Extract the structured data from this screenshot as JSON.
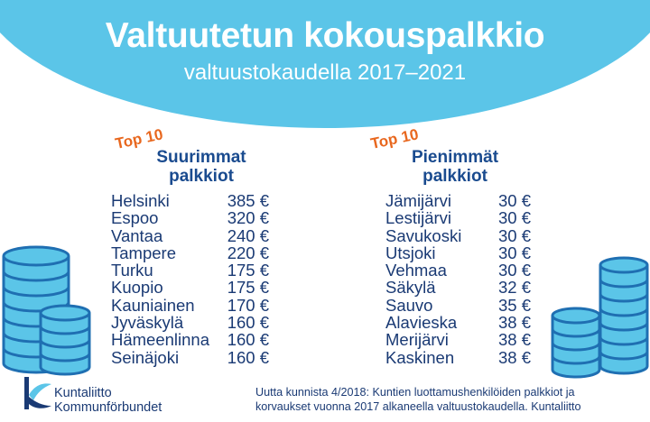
{
  "header": {
    "title": "Valtuutetun kokouspalkkio",
    "subtitle": "valtuustokaudella 2017–2021",
    "color": "#5bc5e8"
  },
  "left": {
    "badge": "Top 10",
    "title_line1": "Suurimmat",
    "title_line2": "palkkiot",
    "rows": [
      {
        "name": "Helsinki",
        "value": "385 €"
      },
      {
        "name": "Espoo",
        "value": "320 €"
      },
      {
        "name": "Vantaa",
        "value": "240 €"
      },
      {
        "name": "Tampere",
        "value": "220 €"
      },
      {
        "name": "Turku",
        "value": "175 €"
      },
      {
        "name": "Kuopio",
        "value": "175 €"
      },
      {
        "name": "Kauniainen",
        "value": "170 €"
      },
      {
        "name": "Jyväskylä",
        "value": "160 €"
      },
      {
        "name": "Hämeenlinna",
        "value": "160 €"
      },
      {
        "name": "Seinäjoki",
        "value": "160 €"
      }
    ]
  },
  "right": {
    "badge": "Top 10",
    "title_line1": "Pienimmät",
    "title_line2": "palkkiot",
    "rows": [
      {
        "name": "Jämijärvi",
        "value": "30 €"
      },
      {
        "name": "Lestijärvi",
        "value": "30 €"
      },
      {
        "name": "Savukoski",
        "value": "30 €"
      },
      {
        "name": "Utsjoki",
        "value": "30 €"
      },
      {
        "name": "Vehmaa",
        "value": "30 €"
      },
      {
        "name": "Säkylä",
        "value": "32 €"
      },
      {
        "name": "Sauvo",
        "value": "35 €"
      },
      {
        "name": "Alavieska",
        "value": "38 €"
      },
      {
        "name": "Merijärvi",
        "value": "38 €"
      },
      {
        "name": "Kaskinen",
        "value": "38 €"
      }
    ]
  },
  "footer": {
    "logo_line1": "Kuntaliitto",
    "logo_line2": "Kommunförbundet",
    "source_line1": "Uutta kunnista 4/2018: Kuntien luottamushenkilöiden palkkiot ja",
    "source_line2": "korvaukset vuonna 2017 alkaneella valtuustokaudella. Kuntaliitto"
  },
  "colors": {
    "accent_orange": "#e8671e",
    "text_navy": "#1a3a74",
    "coin_blue": "#5bc5e8",
    "coin_edge": "#1f6fb2"
  },
  "icons": {
    "coins": "coin-stack-icon",
    "logo": "kuntaliitto-logo-icon"
  }
}
